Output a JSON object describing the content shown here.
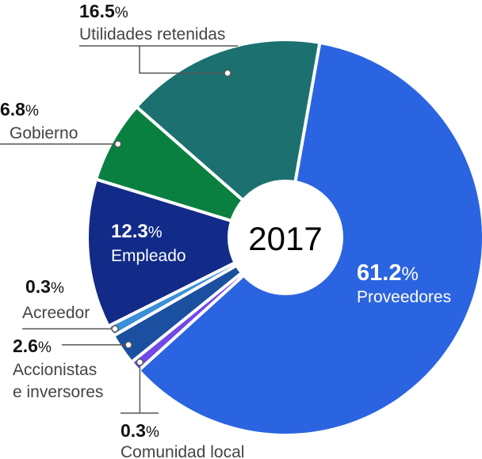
{
  "chart_data": {
    "type": "pie",
    "donut": true,
    "center_label": "2017",
    "slices": [
      {
        "label": "Proveedores",
        "value": 61.2,
        "display": "61.2%",
        "color": "#2b64e0"
      },
      {
        "label": "Comunidad local",
        "value": 0.3,
        "display": "0.3%",
        "color": "#7048e8"
      },
      {
        "label": "Accionistas\ne inversores",
        "value": 2.6,
        "display": "2.6%",
        "color": "#1b4fa0"
      },
      {
        "label": "Acreedor",
        "value": 0.3,
        "display": "0.3%",
        "color": "#3b8fd6"
      },
      {
        "label": "Empleado",
        "value": 12.3,
        "display": "12.3%",
        "color": "#122b88"
      },
      {
        "label": "Gobierno",
        "value": 6.8,
        "display": "6.8%",
        "color": "#0a8040"
      },
      {
        "label": "Utilidades retenidas",
        "value": 16.5,
        "display": "16.5%",
        "color": "#1c7170"
      }
    ]
  }
}
